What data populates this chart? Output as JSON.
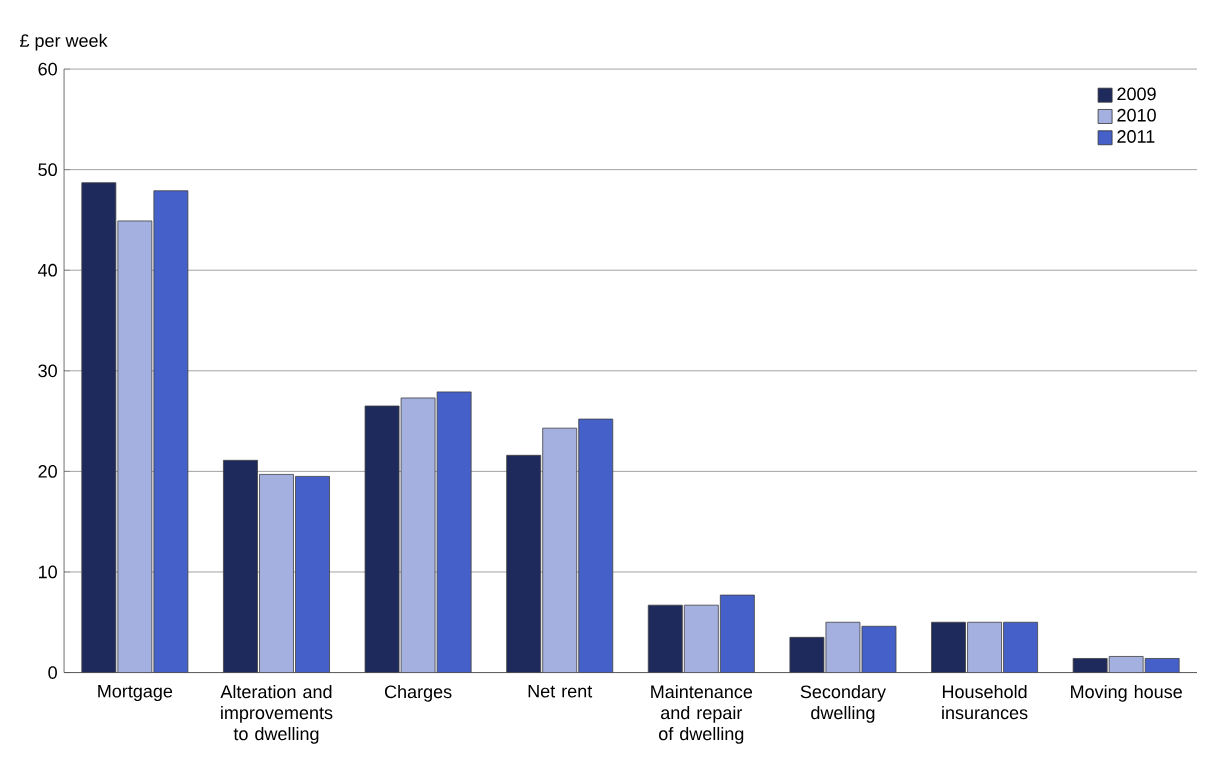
{
  "chart_data": {
    "type": "bar",
    "ylabel": "£ per week",
    "categories": [
      "Mortgage",
      "Alteration and improvements to dwelling",
      "Charges",
      "Net rent",
      "Maintenance and repair of dwelling",
      "Secondary dwelling",
      "Household insurances",
      "Moving house"
    ],
    "series": [
      {
        "name": "2009",
        "color": "#1f2a5c",
        "values": [
          48.7,
          21.1,
          26.5,
          21.6,
          6.7,
          3.5,
          5.0,
          1.4
        ]
      },
      {
        "name": "2010",
        "color": "#a4b0e0",
        "values": [
          44.9,
          19.7,
          27.3,
          24.3,
          6.7,
          5.0,
          5.0,
          1.6
        ]
      },
      {
        "name": "2011",
        "color": "#4560c8",
        "values": [
          47.9,
          19.5,
          27.9,
          25.2,
          7.7,
          4.6,
          5.0,
          1.4
        ]
      }
    ],
    "ylim": [
      0,
      60
    ],
    "yticks": [
      0,
      10,
      20,
      30,
      40,
      50,
      60
    ],
    "grid": "y",
    "legend": "top right"
  }
}
